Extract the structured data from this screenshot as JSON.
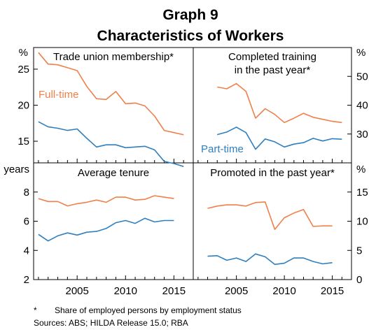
{
  "graph_label": "Graph 9",
  "graph_title": "Characteristics of Workers",
  "footnote_marker": "*",
  "footnote_text": "Share of employed persons by employment status",
  "sources": "Sources: ABS; HILDA Release 15.0; RBA",
  "colors": {
    "full_time": "#f0804a",
    "part_time": "#2f7fbf",
    "frame": "#000000"
  },
  "chart_data": [
    {
      "type": "line",
      "title": "Trade union membership*",
      "unit_label": "%",
      "axis_side": "left",
      "ylim": [
        12,
        28
      ],
      "yticks": [
        15,
        20,
        25
      ],
      "xlim": [
        2000.5,
        2017
      ],
      "series": [
        {
          "name": "Full-time",
          "color": "#f0804a",
          "x": [
            2001,
            2002,
            2003,
            2004,
            2005,
            2006,
            2007,
            2008,
            2009,
            2010,
            2011,
            2012,
            2013,
            2014,
            2015,
            2016
          ],
          "values": [
            27.3,
            25.7,
            25.6,
            25.2,
            24.8,
            22.6,
            20.9,
            20.8,
            21.9,
            20.2,
            20.3,
            19.9,
            18.5,
            16.5,
            16.2,
            15.9
          ]
        },
        {
          "name": "",
          "color": "#2f7fbf",
          "x": [
            2001,
            2002,
            2003,
            2004,
            2005,
            2006,
            2007,
            2008,
            2009,
            2010,
            2011,
            2012,
            2013,
            2014,
            2015,
            2016
          ],
          "values": [
            17.7,
            17.0,
            16.8,
            16.5,
            16.7,
            15.4,
            14.2,
            14.5,
            14.5,
            14.1,
            14.2,
            14.3,
            13.8,
            12.2,
            11.9,
            11.5
          ]
        }
      ]
    },
    {
      "type": "line",
      "title": "Completed training in the past year*",
      "title_lines": [
        "Completed training",
        "in the past year*"
      ],
      "unit_label": "%",
      "axis_side": "right",
      "ylim": [
        20,
        60
      ],
      "yticks": [
        30,
        40,
        50
      ],
      "xlim": [
        2000.5,
        2017
      ],
      "series": [
        {
          "name": "",
          "color": "#f0804a",
          "x": [
            2003,
            2004,
            2005,
            2006,
            2007,
            2008,
            2009,
            2010,
            2011,
            2012,
            2013,
            2014,
            2015,
            2016
          ],
          "values": [
            46.3,
            45.7,
            47.5,
            44.8,
            35.5,
            38.8,
            36.8,
            34.0,
            35.5,
            37.2,
            35.8,
            35.1,
            34.4,
            34.0
          ]
        },
        {
          "name": "Part-time",
          "color": "#2f7fbf",
          "x": [
            2003,
            2004,
            2005,
            2006,
            2007,
            2008,
            2009,
            2010,
            2011,
            2012,
            2013,
            2014,
            2015,
            2016
          ],
          "values": [
            29.8,
            30.7,
            32.4,
            30.5,
            24.7,
            28.3,
            27.3,
            25.5,
            26.5,
            27.0,
            28.5,
            27.6,
            28.4,
            28.2
          ]
        }
      ]
    },
    {
      "type": "line",
      "title": "Average tenure",
      "unit_label": "years",
      "axis_side": "left",
      "ylim": [
        2,
        10
      ],
      "yticks": [
        2,
        4,
        6,
        8
      ],
      "xlim": [
        2000.5,
        2017
      ],
      "xticks": [
        2005,
        2010,
        2015
      ],
      "series": [
        {
          "name": "",
          "color": "#f0804a",
          "x": [
            2001,
            2002,
            2003,
            2004,
            2005,
            2006,
            2007,
            2008,
            2009,
            2010,
            2011,
            2012,
            2013,
            2014,
            2015,
            2016
          ],
          "values": [
            7.55,
            7.35,
            7.35,
            7.05,
            7.2,
            7.3,
            7.45,
            7.3,
            7.65,
            7.65,
            7.45,
            7.5,
            7.75,
            7.65,
            7.55,
            null
          ]
        },
        {
          "name": "",
          "color": "#2f7fbf",
          "x": [
            2001,
            2002,
            2003,
            2004,
            2005,
            2006,
            2007,
            2008,
            2009,
            2010,
            2011,
            2012,
            2013,
            2014,
            2015,
            2016
          ],
          "values": [
            5.1,
            4.65,
            5.0,
            5.2,
            5.05,
            5.25,
            5.3,
            5.5,
            5.9,
            6.05,
            5.85,
            6.2,
            5.95,
            6.05,
            6.05,
            null
          ]
        }
      ]
    },
    {
      "type": "line",
      "title": "Promoted in the past year*",
      "unit_label": "%",
      "axis_side": "right",
      "ylim": [
        0,
        20
      ],
      "yticks": [
        0,
        5,
        10,
        15
      ],
      "xlim": [
        2000.5,
        2017
      ],
      "xticks": [
        2005,
        2010,
        2015
      ],
      "series": [
        {
          "name": "",
          "color": "#f0804a",
          "x": [
            2002,
            2003,
            2004,
            2005,
            2006,
            2007,
            2008,
            2009,
            2010,
            2011,
            2012,
            2013,
            2014,
            2015
          ],
          "values": [
            12.2,
            12.6,
            12.8,
            12.8,
            12.6,
            13.2,
            13.3,
            8.6,
            10.6,
            11.4,
            12.0,
            9.1,
            9.2,
            9.2
          ]
        },
        {
          "name": "",
          "color": "#2f7fbf",
          "x": [
            2002,
            2003,
            2004,
            2005,
            2006,
            2007,
            2008,
            2009,
            2010,
            2011,
            2012,
            2013,
            2014,
            2015
          ],
          "values": [
            4.0,
            4.1,
            3.3,
            3.7,
            3.1,
            4.4,
            3.9,
            2.6,
            2.8,
            3.7,
            3.7,
            3.1,
            2.7,
            2.9
          ]
        }
      ]
    }
  ]
}
